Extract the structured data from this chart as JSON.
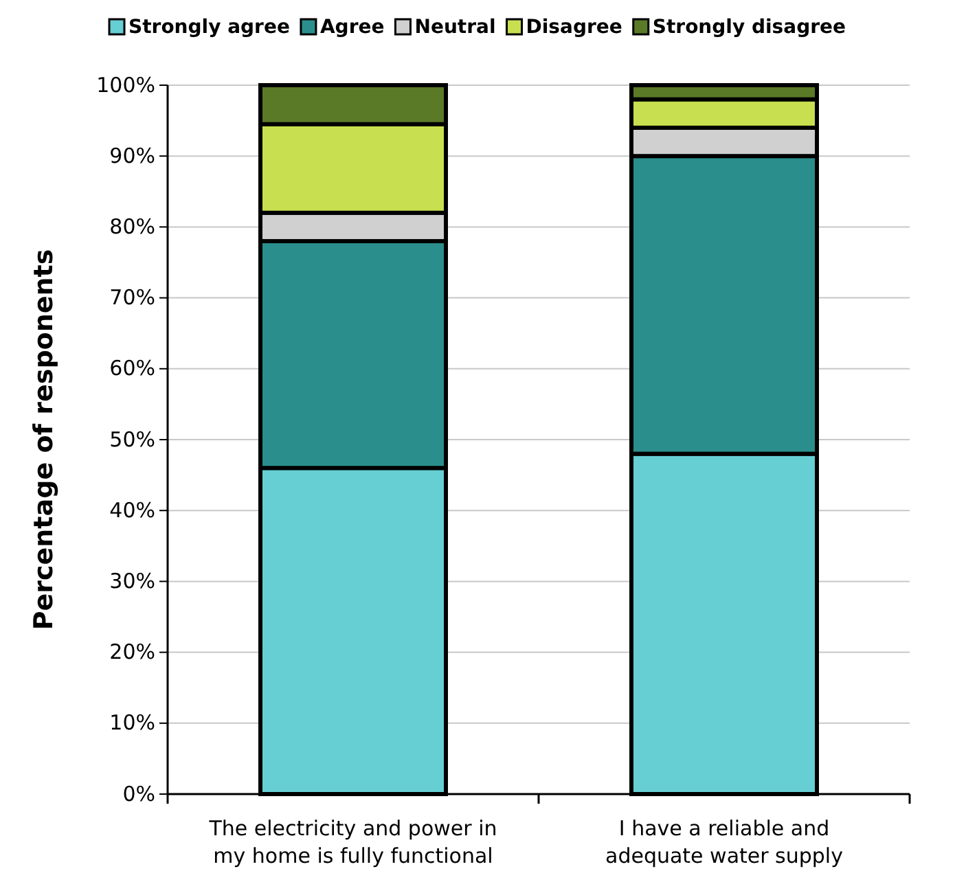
{
  "chart_data": {
    "type": "bar",
    "stacked": true,
    "ylabel": "Percentage of responents",
    "categories": [
      "The electricity and power in my home is fully functional",
      "I have a reliable and adequate water supply"
    ],
    "series": [
      {
        "name": "Strongly agree",
        "color": "#66cfd3",
        "values": [
          46,
          48
        ]
      },
      {
        "name": "Agree",
        "color": "#2a8f8c",
        "values": [
          32,
          42
        ]
      },
      {
        "name": "Neutral",
        "color": "#d0d0d0",
        "values": [
          4,
          4
        ]
      },
      {
        "name": "Disagree",
        "color": "#c8e050",
        "values": [
          12.5,
          4
        ]
      },
      {
        "name": "Strongly disagree",
        "color": "#5a7a28",
        "values": [
          5.5,
          2
        ]
      }
    ],
    "ylim": [
      0,
      100
    ],
    "yticks": [
      {
        "value": 0,
        "label": "0%"
      },
      {
        "value": 10,
        "label": "10%"
      },
      {
        "value": 20,
        "label": "20%"
      },
      {
        "value": 30,
        "label": "30%"
      },
      {
        "value": 40,
        "label": "40%"
      },
      {
        "value": 50,
        "label": "50%"
      },
      {
        "value": 60,
        "label": "60%"
      },
      {
        "value": 70,
        "label": "70%"
      },
      {
        "value": 80,
        "label": "80%"
      },
      {
        "value": 90,
        "label": "90%"
      },
      {
        "value": 100,
        "label": "100%"
      }
    ],
    "grid": "y",
    "legend": "top"
  }
}
